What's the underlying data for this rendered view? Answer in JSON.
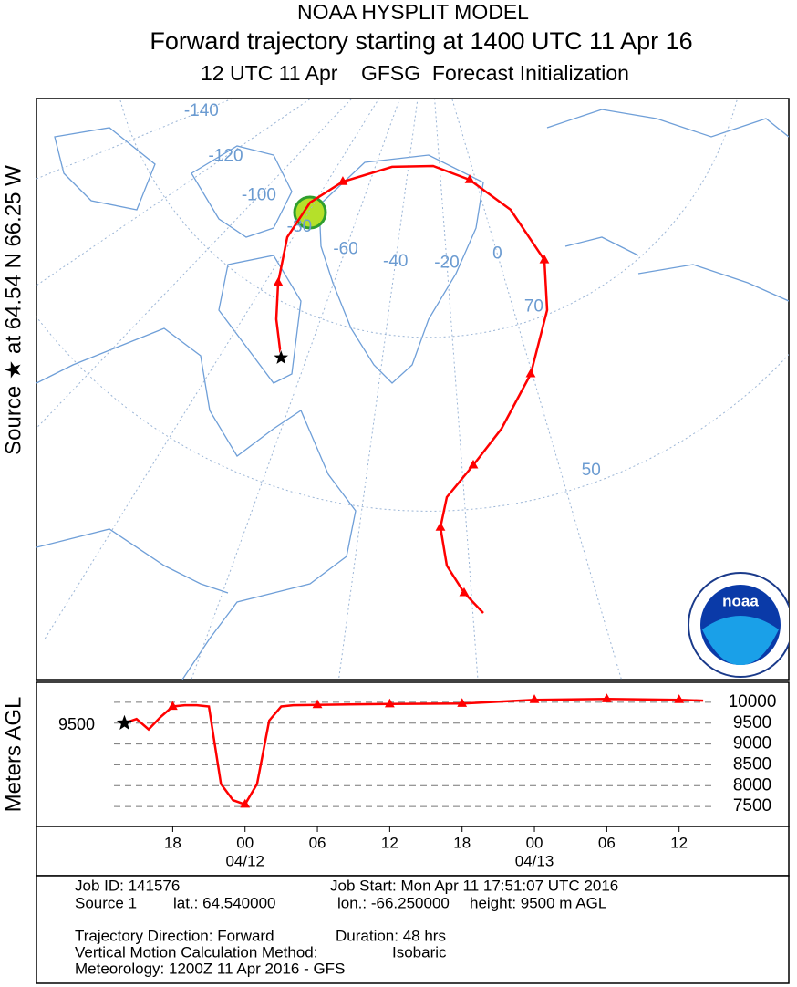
{
  "title": "NOAA HYSPLIT MODEL",
  "subtitle": "Forward trajectory starting at 1400 UTC 11 Apr 16",
  "init_line": "12 UTC 11 Apr    GFSG  Forecast Initialization",
  "side_label": "Source ★ at 64.54 N 66.25 W",
  "map": {
    "meridians": [
      -140,
      -120,
      -100,
      -80,
      -60,
      -40,
      -20,
      0
    ],
    "parallels": [
      70,
      50
    ],
    "logo_text": "noaa",
    "trajectory": {
      "color": "#ff0000",
      "hours": [
        14,
        16,
        18,
        20,
        22,
        24,
        26,
        28,
        30,
        33,
        36,
        39,
        42,
        45,
        48,
        51,
        54,
        57,
        60,
        62
      ],
      "lat": [
        64.54,
        68.1,
        71.5,
        75.66,
        79.24,
        81.9,
        84.07,
        84.4,
        83.16,
        80.1,
        74.98,
        70.42,
        64.56,
        59.22,
        55.38,
        51.7,
        47.96,
        43.1,
        39.52,
        36.76
      ],
      "lon": [
        -66.25,
        -71.83,
        -76.5,
        -81.87,
        -81.7,
        -73.27,
        -50.08,
        -24.15,
        -3.33,
        11.56,
        15.57,
        9.75,
        -0.4,
        -10.3,
        -17.58,
        -23.47,
        -24.88,
        -23.92,
        -21.2,
        -18.33
      ]
    }
  },
  "height_panel": {
    "type": "line",
    "axis_label": "Meters AGL",
    "source_label": "9500",
    "color": "#ff0000",
    "x": [
      14,
      15,
      16,
      17,
      18,
      19,
      20,
      21,
      22,
      23,
      24,
      25,
      26,
      27,
      28,
      30,
      36,
      42,
      48,
      54,
      60,
      62
    ],
    "values": [
      9500,
      9600,
      9350,
      9650,
      9900,
      9930,
      9930,
      9900,
      8040,
      7650,
      7550,
      8040,
      9560,
      9900,
      9930,
      9940,
      9960,
      9970,
      10060,
      10080,
      10060,
      10040
    ],
    "xlim": [
      6.7,
      69.1
    ],
    "ylim": [
      7020,
      10480
    ],
    "yticks": [
      7500,
      8000,
      8500,
      9000,
      9500,
      10000
    ],
    "xticks": [
      {
        "value": 18,
        "label": "18"
      },
      {
        "value": 24,
        "label": "00"
      },
      {
        "value": 30,
        "label": "06"
      },
      {
        "value": 36,
        "label": "12"
      },
      {
        "value": 42,
        "label": "18"
      },
      {
        "value": 48,
        "label": "00"
      },
      {
        "value": 54,
        "label": "06"
      },
      {
        "value": 60,
        "label": "12"
      }
    ],
    "date_labels": [
      {
        "value": 24,
        "label": "04/12"
      },
      {
        "value": 48,
        "label": "04/13"
      }
    ]
  },
  "footer": {
    "job_id": "Job ID: 141576",
    "job_start": "Job Start: Mon Apr 11 17:51:07 UTC 2016",
    "source": "Source 1",
    "lat": "lat.: 64.540000",
    "lon": "lon.: -66.250000",
    "height": "height: 9500 m AGL",
    "direction": "Trajectory Direction: Forward",
    "duration": "Duration: 48 hrs",
    "method": "Vertical Motion Calculation Method:",
    "method_value": "Isobaric",
    "meteorology": "Meteorology: 1200Z 11 Apr 2016 - GFS"
  }
}
